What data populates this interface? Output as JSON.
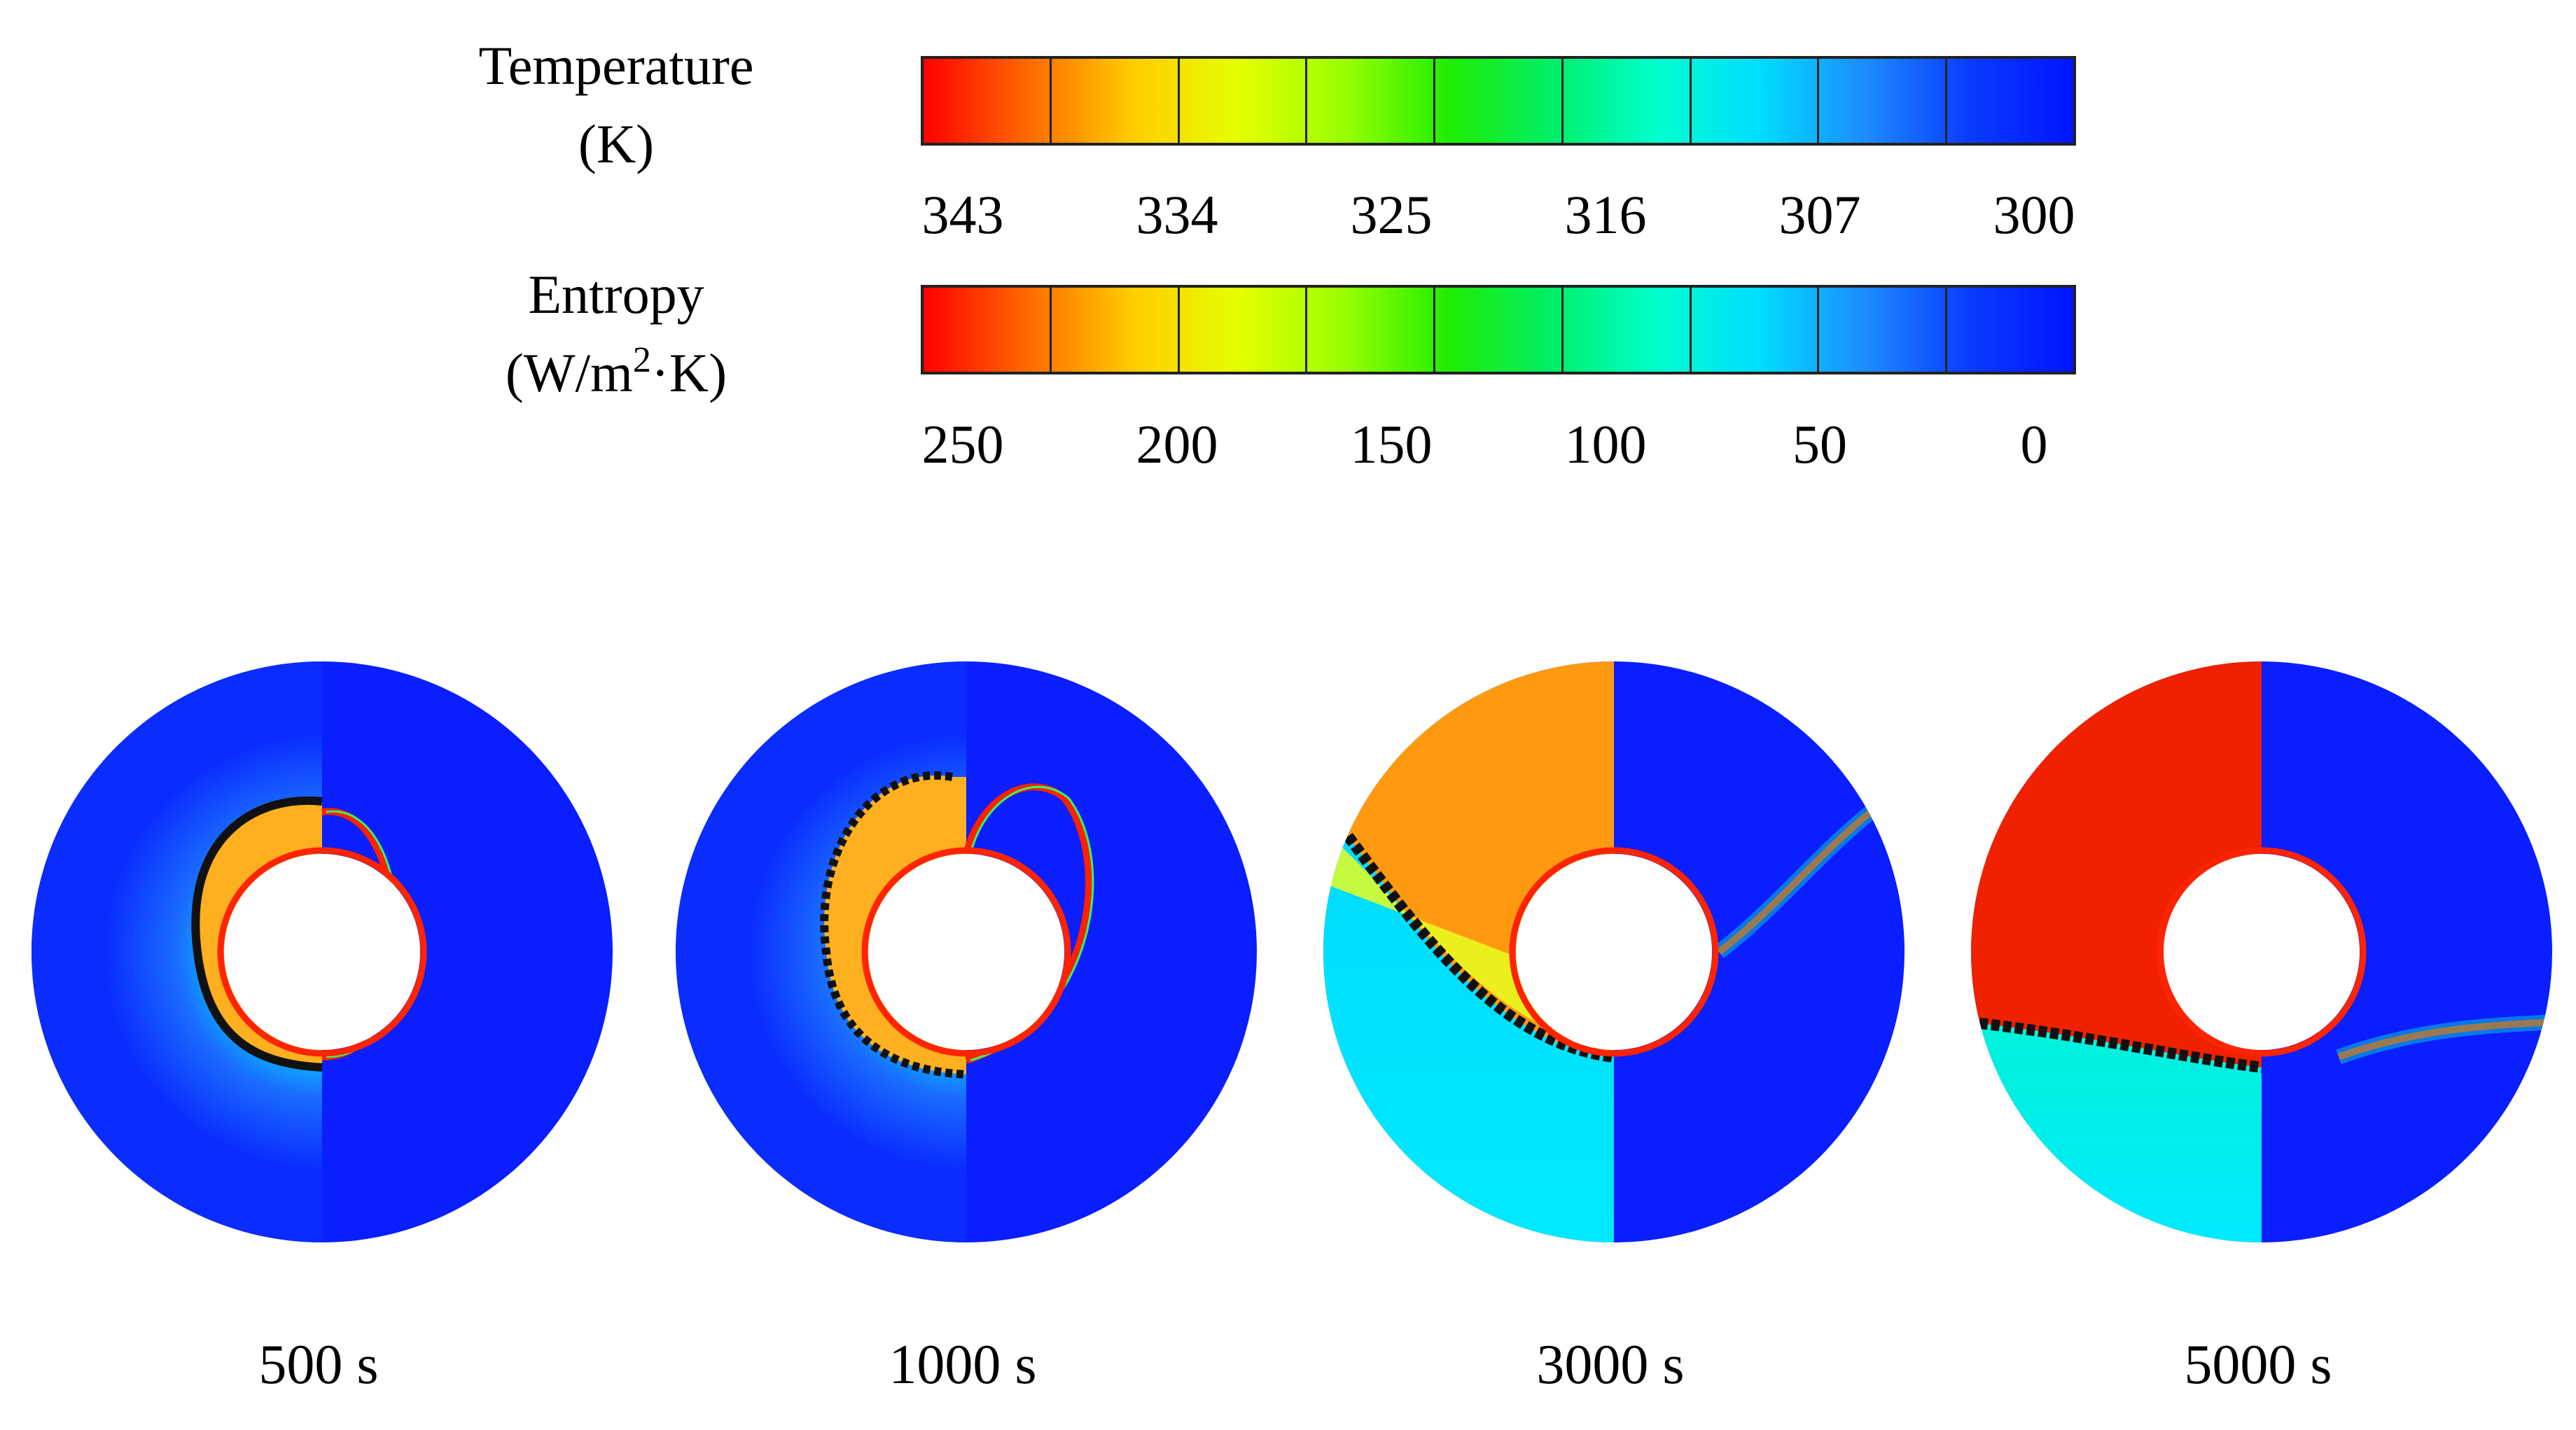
{
  "legends": [
    {
      "label_line1": "Temperature",
      "label_line2": "(K)",
      "ticks": [
        "343",
        "334",
        "325",
        "316",
        "307",
        "300"
      ]
    },
    {
      "label_line1": "Entropy",
      "label_line2_pre": "(W/m",
      "label_line2_sup": "2",
      "label_line2_post": "·K)",
      "ticks": [
        "250",
        "200",
        "150",
        "100",
        "50",
        "0"
      ]
    }
  ],
  "colormap": [
    "#ff0000",
    "#ff6a00",
    "#ffcc00",
    "#e6ff00",
    "#9cff00",
    "#22ee00",
    "#00ee66",
    "#00ffcc",
    "#00ddff",
    "#1d8cff",
    "#0a3cff",
    "#0014ff"
  ],
  "panels": [
    {
      "time": "500 s",
      "stage": 0
    },
    {
      "time": "1000 s",
      "stage": 1
    },
    {
      "time": "3000 s",
      "stage": 2
    },
    {
      "time": "5000 s",
      "stage": 3
    }
  ]
}
